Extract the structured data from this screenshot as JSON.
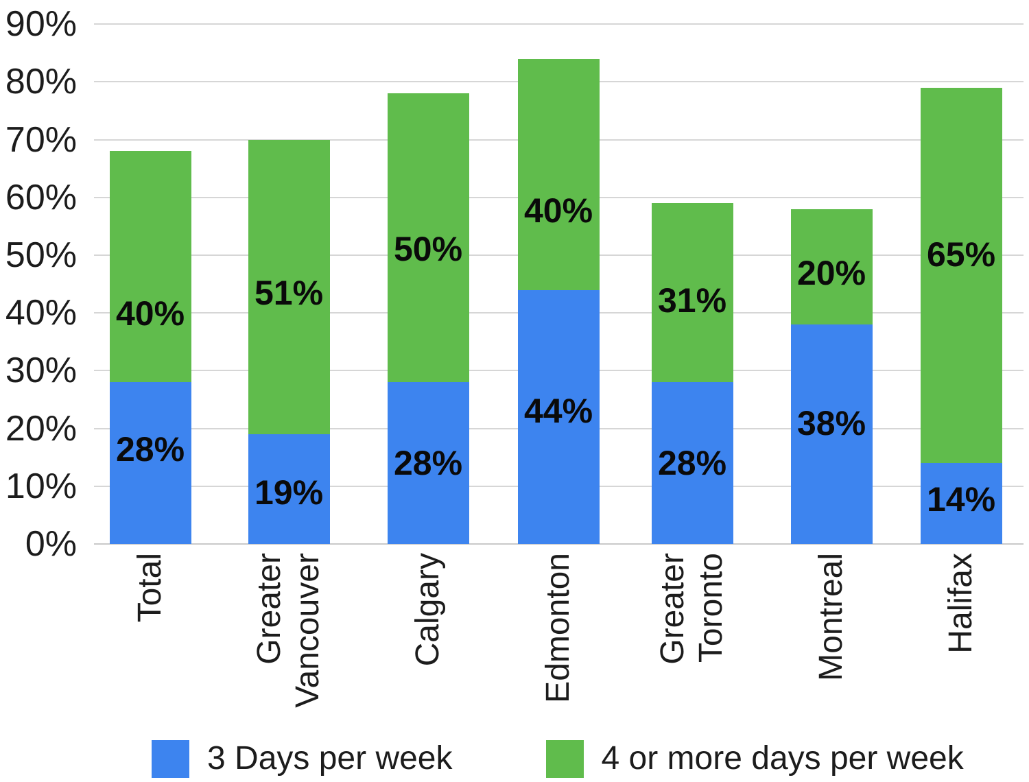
{
  "chart_data": {
    "type": "bar",
    "stacked": true,
    "title": "",
    "categories": [
      {
        "name": "Total",
        "lines": [
          "Total"
        ]
      },
      {
        "name": "Greater Vancouver",
        "lines": [
          "Greater",
          "Vancouver"
        ]
      },
      {
        "name": "Calgary",
        "lines": [
          "Calgary"
        ]
      },
      {
        "name": "Edmonton",
        "lines": [
          "Edmonton"
        ]
      },
      {
        "name": "Greater Toronto",
        "lines": [
          "Greater",
          "Toronto"
        ]
      },
      {
        "name": "Montreal",
        "lines": [
          "Montreal"
        ]
      },
      {
        "name": "Halifax",
        "lines": [
          "Halifax"
        ]
      }
    ],
    "series": [
      {
        "name": "3 Days per week",
        "color": "#3D84EF",
        "values": [
          28,
          19,
          28,
          44,
          28,
          38,
          14
        ]
      },
      {
        "name": "4 or more days per week",
        "color": "#60BC4C",
        "values": [
          40,
          51,
          50,
          40,
          31,
          20,
          65
        ]
      }
    ],
    "data_label_suffix": "%",
    "y_axis": {
      "min": 0,
      "max": 90,
      "step": 10,
      "ticks": [
        "0%",
        "10%",
        "20%",
        "30%",
        "40%",
        "50%",
        "60%",
        "70%",
        "80%",
        "90%"
      ]
    },
    "grid": true,
    "legend_position": "bottom",
    "colors": {
      "gridline": "#D6D6D6",
      "baseline": "#C9C9C9",
      "axis_text": "#1C1C1C",
      "data_label_text": "#0A0A0A",
      "background": "#FFFFFF"
    }
  }
}
